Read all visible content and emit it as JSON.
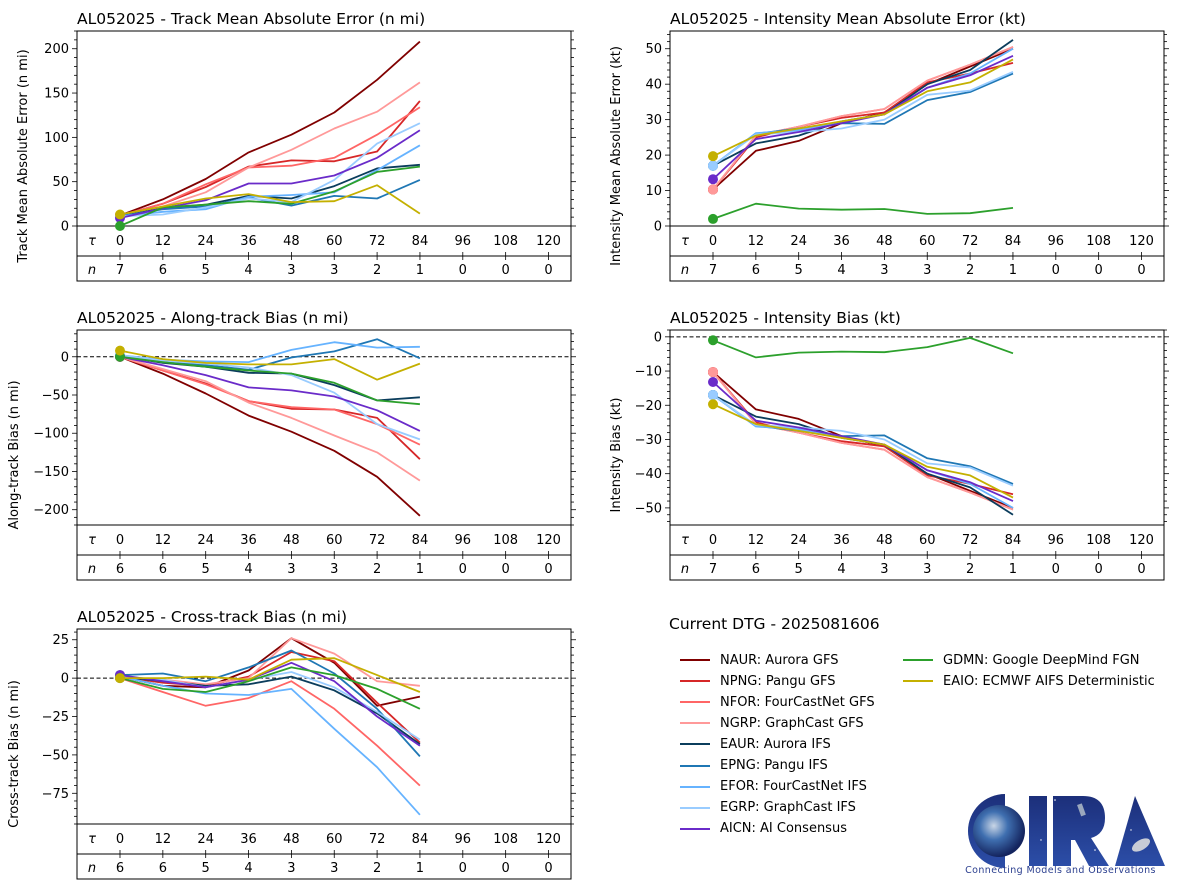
{
  "models": [
    {
      "id": "NAUR",
      "label": "NAUR: Aurora GFS",
      "color": "#800000"
    },
    {
      "id": "NPNG",
      "label": "NPNG: Pangu GFS",
      "color": "#d62728"
    },
    {
      "id": "NFOR",
      "label": "NFOR: FourCastNet GFS",
      "color": "#ff6666"
    },
    {
      "id": "NGRP",
      "label": "NGRP: GraphCast GFS",
      "color": "#ff9999"
    },
    {
      "id": "EAUR",
      "label": "EAUR: Aurora IFS",
      "color": "#0b3d5c"
    },
    {
      "id": "EPNG",
      "label": "EPNG: Pangu IFS",
      "color": "#1f77b4"
    },
    {
      "id": "EFOR",
      "label": "EFOR: FourCastNet IFS",
      "color": "#66b3ff"
    },
    {
      "id": "EGRP",
      "label": "EGRP: GraphCast IFS",
      "color": "#99ccff"
    },
    {
      "id": "AICN",
      "label": "AICN: AI Consensus",
      "color": "#6a2bc9"
    },
    {
      "id": "GDMN",
      "label": "GDMN: Google DeepMind FGN",
      "color": "#2ca02c"
    },
    {
      "id": "EAIO",
      "label": "EAIO: ECMWF AIFS Deterministic",
      "color": "#c4b000"
    }
  ],
  "legend": {
    "title": "Current DTG - 2025081606"
  },
  "logo": {
    "text": "CIRA",
    "tagline": "Connecting Models and Observations"
  },
  "table_labels": {
    "tau": "τ",
    "n": "n"
  },
  "chart_data": [
    {
      "id": "track_mae",
      "type": "line",
      "title": "AL052025 - Track Mean Absolute Error (n mi)",
      "ylabel": "Track Mean Absolute Error (n mi)",
      "xlabel": "τ",
      "x": [
        0,
        12,
        24,
        36,
        48,
        60,
        72,
        84
      ],
      "xticks": [
        0,
        12,
        24,
        36,
        48,
        60,
        72,
        84,
        96,
        108,
        120
      ],
      "n_counts": [
        7,
        6,
        5,
        4,
        3,
        3,
        2,
        1,
        0,
        0,
        0
      ],
      "ylim": [
        0,
        220
      ],
      "yticks": [
        0,
        50,
        100,
        150,
        200
      ],
      "zero_line": false,
      "series": [
        {
          "name": "NAUR",
          "values": [
            12,
            30,
            53,
            83,
            103,
            128,
            165,
            208
          ]
        },
        {
          "name": "NPNG",
          "values": [
            12,
            25,
            44,
            67,
            74,
            73,
            84,
            141
          ]
        },
        {
          "name": "NFOR",
          "values": [
            12,
            25,
            47,
            66,
            68,
            77,
            103,
            134
          ]
        },
        {
          "name": "NGRP",
          "values": [
            12,
            22,
            38,
            66,
            86,
            110,
            129,
            162
          ]
        },
        {
          "name": "EAUR",
          "values": [
            11,
            20,
            24,
            34,
            31,
            45,
            65,
            69
          ]
        },
        {
          "name": "EPNG",
          "values": [
            11,
            19,
            22,
            32,
            23,
            34,
            31,
            52
          ]
        },
        {
          "name": "EFOR",
          "values": [
            11,
            16,
            19,
            33,
            35,
            38,
            63,
            91
          ]
        },
        {
          "name": "EGRP",
          "values": [
            11,
            13,
            21,
            31,
            27,
            52,
            93,
            116
          ]
        },
        {
          "name": "AICN",
          "values": [
            9,
            20,
            29,
            48,
            48,
            57,
            77,
            108
          ]
        },
        {
          "name": "GDMN",
          "values": [
            0,
            21,
            24,
            28,
            25,
            39,
            61,
            67
          ]
        },
        {
          "name": "EAIO",
          "values": [
            13,
            22,
            31,
            36,
            27,
            28,
            46,
            14
          ]
        }
      ]
    },
    {
      "id": "intensity_mae",
      "type": "line",
      "title": "AL052025 - Intensity Mean Absolute Error (kt)",
      "ylabel": "Intensity Mean Absolute Error (kt)",
      "xlabel": "τ",
      "x": [
        0,
        12,
        24,
        36,
        48,
        60,
        72,
        84
      ],
      "xticks": [
        0,
        12,
        24,
        36,
        48,
        60,
        72,
        84,
        96,
        108,
        120
      ],
      "n_counts": [
        7,
        6,
        5,
        4,
        3,
        3,
        2,
        1,
        0,
        0,
        0
      ],
      "ylim": [
        0,
        55
      ],
      "yticks": [
        0,
        10,
        20,
        30,
        40,
        50
      ],
      "zero_line": false,
      "series": [
        {
          "name": "NAUR",
          "values": [
            10.3,
            21.2,
            24.0,
            29.0,
            32.0,
            40.0,
            45.0,
            50.0
          ]
        },
        {
          "name": "NPNG",
          "values": [
            10.3,
            25.0,
            28.0,
            30.5,
            32.0,
            40.5,
            43.0,
            46.0
          ]
        },
        {
          "name": "NFOR",
          "values": [
            10.3,
            25.5,
            28.0,
            31.0,
            33.0,
            41.0,
            45.5,
            50.5
          ]
        },
        {
          "name": "NGRP",
          "values": [
            10.3,
            25.5,
            28.0,
            31.0,
            33.0,
            41.0,
            45.5,
            50.5
          ]
        },
        {
          "name": "EAUR",
          "values": [
            17.0,
            23.3,
            25.5,
            29.5,
            31.5,
            40.0,
            44.0,
            52.5
          ]
        },
        {
          "name": "EPNG",
          "values": [
            17.0,
            26.0,
            27.5,
            29.0,
            28.8,
            35.5,
            37.8,
            43.0
          ]
        },
        {
          "name": "EFOR",
          "values": [
            17.0,
            26.2,
            27.0,
            29.5,
            31.5,
            39.0,
            43.0,
            50.0
          ]
        },
        {
          "name": "EGRP",
          "values": [
            17.0,
            25.8,
            26.5,
            27.5,
            30.0,
            37.0,
            38.2,
            43.5
          ]
        },
        {
          "name": "AICN",
          "values": [
            13.2,
            24.5,
            26.5,
            29.0,
            31.5,
            39.0,
            42.5,
            48.0
          ]
        },
        {
          "name": "GDMN",
          "values": [
            2.0,
            6.3,
            4.9,
            4.6,
            4.8,
            3.4,
            3.6,
            5.1
          ]
        },
        {
          "name": "EAIO",
          "values": [
            19.7,
            25.5,
            27.5,
            29.5,
            31.5,
            38.0,
            40.5,
            47.0
          ]
        }
      ]
    },
    {
      "id": "along_track_bias",
      "type": "line",
      "title": "AL052025 - Along-track Bias (n mi)",
      "ylabel": "Along-track Bias (n mi)",
      "xlabel": "τ",
      "x": [
        0,
        12,
        24,
        36,
        48,
        60,
        72,
        84
      ],
      "xticks": [
        0,
        12,
        24,
        36,
        48,
        60,
        72,
        84,
        96,
        108,
        120
      ],
      "n_counts": [
        6,
        6,
        5,
        4,
        3,
        3,
        2,
        1,
        0,
        0,
        0
      ],
      "ylim": [
        -220,
        35
      ],
      "yticks": [
        0,
        -50,
        -100,
        -150,
        -200
      ],
      "zero_line": true,
      "series": [
        {
          "name": "NAUR",
          "values": [
            0,
            -22,
            -48,
            -77,
            -98,
            -123,
            -157,
            -208
          ]
        },
        {
          "name": "NPNG",
          "values": [
            0,
            -18,
            -35,
            -58,
            -68,
            -69,
            -80,
            -134
          ]
        },
        {
          "name": "NFOR",
          "values": [
            0,
            -18,
            -36,
            -58,
            -66,
            -69,
            -88,
            -115
          ]
        },
        {
          "name": "NGRP",
          "values": [
            0,
            -16,
            -32,
            -60,
            -80,
            -103,
            -125,
            -162
          ]
        },
        {
          "name": "EAUR",
          "values": [
            1,
            -8,
            -13,
            -21,
            -22,
            -37,
            -57,
            -53
          ]
        },
        {
          "name": "EPNG",
          "values": [
            1,
            -7,
            -11,
            -17,
            -1,
            7,
            23,
            -2
          ]
        },
        {
          "name": "EFOR",
          "values": [
            2,
            -4,
            -6,
            -7,
            9,
            19,
            12,
            13
          ]
        },
        {
          "name": "EGRP",
          "values": [
            2,
            -5,
            -9,
            -14,
            -24,
            -47,
            -88,
            -108
          ]
        },
        {
          "name": "AICN",
          "values": [
            0,
            -11,
            -24,
            -40,
            -44,
            -52,
            -70,
            -97
          ]
        },
        {
          "name": "GDMN",
          "values": [
            0,
            -7,
            -13,
            -18,
            -22,
            -34,
            -57,
            -62
          ]
        },
        {
          "name": "EAIO",
          "values": [
            8,
            -3,
            -8,
            -10,
            -10,
            -3,
            -30,
            -9
          ]
        }
      ]
    },
    {
      "id": "intensity_bias",
      "type": "line",
      "title": "AL052025 - Intensity Bias (kt)",
      "ylabel": "Intensity Bias (kt)",
      "xlabel": "τ",
      "x": [
        0,
        12,
        24,
        36,
        48,
        60,
        72,
        84
      ],
      "xticks": [
        0,
        12,
        24,
        36,
        48,
        60,
        72,
        84,
        96,
        108,
        120
      ],
      "n_counts": [
        7,
        6,
        5,
        4,
        3,
        3,
        2,
        1,
        0,
        0,
        0
      ],
      "ylim": [
        -55,
        2
      ],
      "yticks": [
        0,
        -10,
        -20,
        -30,
        -40,
        -50
      ],
      "zero_line": true,
      "series": [
        {
          "name": "NAUR",
          "values": [
            -10.3,
            -21.2,
            -24.0,
            -29.0,
            -32.0,
            -40.0,
            -45.0,
            -50.0
          ]
        },
        {
          "name": "NPNG",
          "values": [
            -10.3,
            -25.0,
            -28.0,
            -30.5,
            -32.0,
            -40.5,
            -43.0,
            -46.0
          ]
        },
        {
          "name": "NFOR",
          "values": [
            -10.3,
            -25.5,
            -28.0,
            -31.0,
            -33.0,
            -41.0,
            -45.5,
            -50.5
          ]
        },
        {
          "name": "NGRP",
          "values": [
            -10.3,
            -25.5,
            -28.0,
            -31.0,
            -33.0,
            -41.0,
            -45.5,
            -50.5
          ]
        },
        {
          "name": "EAUR",
          "values": [
            -17.0,
            -23.3,
            -25.5,
            -29.5,
            -31.5,
            -40.0,
            -44.0,
            -52.0
          ]
        },
        {
          "name": "EPNG",
          "values": [
            -17.0,
            -26.0,
            -27.5,
            -29.0,
            -28.8,
            -35.5,
            -37.8,
            -43.0
          ]
        },
        {
          "name": "EFOR",
          "values": [
            -17.0,
            -26.2,
            -27.0,
            -29.5,
            -31.5,
            -39.0,
            -43.0,
            -50.0
          ]
        },
        {
          "name": "EGRP",
          "values": [
            -17.0,
            -25.8,
            -26.5,
            -27.5,
            -30.0,
            -37.0,
            -38.2,
            -43.5
          ]
        },
        {
          "name": "AICN",
          "values": [
            -13.2,
            -24.5,
            -26.5,
            -29.0,
            -31.5,
            -39.0,
            -42.5,
            -48.0
          ]
        },
        {
          "name": "GDMN",
          "values": [
            -1.0,
            -6.0,
            -4.6,
            -4.3,
            -4.5,
            -3.0,
            -0.3,
            -4.8
          ]
        },
        {
          "name": "EAIO",
          "values": [
            -19.7,
            -25.5,
            -27.5,
            -29.5,
            -31.5,
            -38.0,
            -40.5,
            -47.0
          ]
        }
      ]
    },
    {
      "id": "cross_track_bias",
      "type": "line",
      "title": "AL052025 - Cross-track Bias (n mi)",
      "ylabel": "Cross-track Bias (n mi)",
      "xlabel": "τ",
      "x": [
        0,
        12,
        24,
        36,
        48,
        60,
        72,
        84
      ],
      "xticks": [
        0,
        12,
        24,
        36,
        48,
        60,
        72,
        84,
        96,
        108,
        120
      ],
      "n_counts": [
        6,
        6,
        5,
        4,
        3,
        3,
        2,
        1,
        0,
        0,
        0
      ],
      "ylim": [
        -95,
        32
      ],
      "yticks": [
        25,
        0,
        -25,
        -50,
        -75
      ],
      "zero_line": true,
      "series": [
        {
          "name": "NAUR",
          "values": [
            1,
            -5,
            -6,
            5,
            26,
            10,
            -18,
            -12
          ]
        },
        {
          "name": "NPNG",
          "values": [
            1,
            -3,
            -5,
            1,
            17,
            11,
            -16,
            -42
          ]
        },
        {
          "name": "NFOR",
          "values": [
            0,
            -9,
            -18,
            -13,
            -2,
            -20,
            -44,
            -70
          ]
        },
        {
          "name": "NGRP",
          "values": [
            1,
            -1,
            -4,
            0,
            26,
            16,
            -2,
            -5
          ]
        },
        {
          "name": "EAUR",
          "values": [
            1,
            -2,
            -5,
            -4,
            1,
            -8,
            -23,
            -43
          ]
        },
        {
          "name": "EPNG",
          "values": [
            2,
            3,
            -2,
            7,
            18,
            3,
            -20,
            -51
          ]
        },
        {
          "name": "EFOR",
          "values": [
            1,
            -5,
            -10,
            -11,
            -7,
            -33,
            -58,
            -89
          ]
        },
        {
          "name": "EGRP",
          "values": [
            1,
            -1,
            -6,
            -1,
            4,
            -6,
            -22,
            -40
          ]
        },
        {
          "name": "AICN",
          "values": [
            2,
            -2,
            -6,
            -1,
            10,
            -2,
            -25,
            -44
          ]
        },
        {
          "name": "GDMN",
          "values": [
            0,
            -7,
            -9,
            -2,
            7,
            2,
            -7,
            -20
          ]
        },
        {
          "name": "EAIO",
          "values": [
            0,
            0,
            1,
            -1,
            12,
            13,
            2,
            -9
          ]
        }
      ]
    }
  ]
}
